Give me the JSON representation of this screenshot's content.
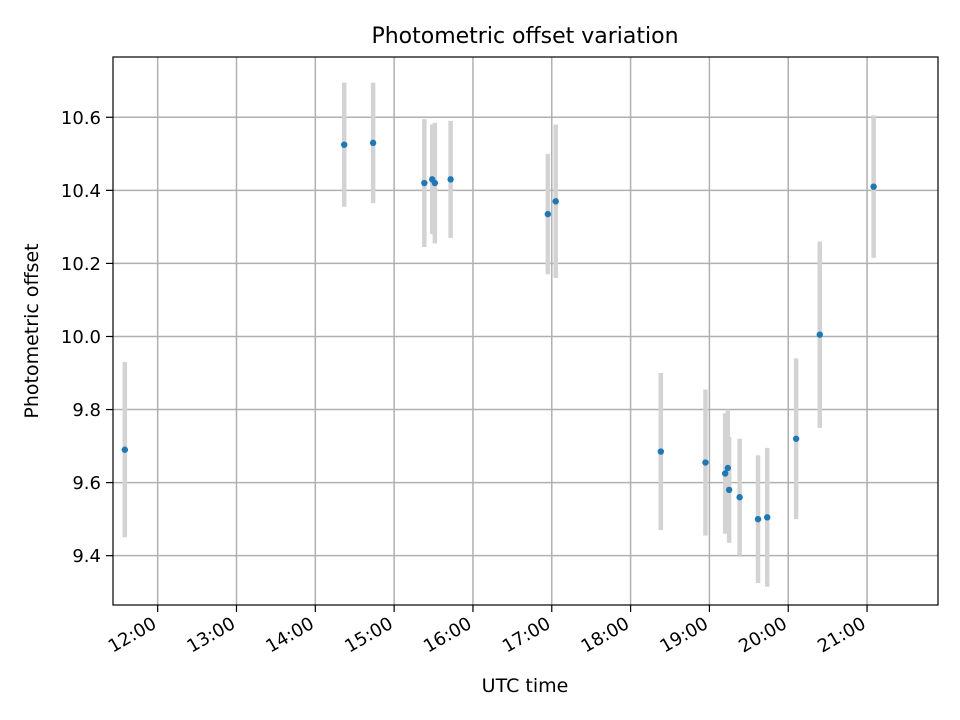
{
  "chart_data": {
    "type": "scatter",
    "title": "Photometric offset variation",
    "xlabel": "UTC time",
    "ylabel": "Photometric offset",
    "x_tick_labels": [
      "12:00",
      "13:00",
      "14:00",
      "15:00",
      "16:00",
      "17:00",
      "18:00",
      "19:00",
      "20:00",
      "21:00"
    ],
    "y_tick_labels": [
      "9.4",
      "9.6",
      "9.8",
      "10.0",
      "10.2",
      "10.4",
      "10.6"
    ],
    "y_ticks": [
      9.4,
      9.6,
      9.8,
      10.0,
      10.2,
      10.4,
      10.6
    ],
    "x_tick_times": [
      "12:00",
      "13:00",
      "14:00",
      "15:00",
      "16:00",
      "17:00",
      "18:00",
      "19:00",
      "20:00",
      "21:00"
    ],
    "xlim": [
      "11:26",
      "21:54"
    ],
    "ylim": [
      9.265,
      10.765
    ],
    "grid": true,
    "marker_color": "#1f77b4",
    "errorbar_color": "#d3d3d3",
    "points": [
      {
        "x": "11:35",
        "y": 9.69,
        "err": 0.24
      },
      {
        "x": "14:22",
        "y": 10.525,
        "err": 0.17
      },
      {
        "x": "14:44",
        "y": 10.53,
        "err": 0.165
      },
      {
        "x": "15:23",
        "y": 10.42,
        "err": 0.175
      },
      {
        "x": "15:29",
        "y": 10.43,
        "err": 0.15
      },
      {
        "x": "15:31",
        "y": 10.42,
        "err": 0.165
      },
      {
        "x": "15:43",
        "y": 10.43,
        "err": 0.16
      },
      {
        "x": "16:57",
        "y": 10.335,
        "err": 0.165
      },
      {
        "x": "17:03",
        "y": 10.37,
        "err": 0.21
      },
      {
        "x": "18:23",
        "y": 9.685,
        "err": 0.215
      },
      {
        "x": "18:57",
        "y": 9.655,
        "err": 0.2
      },
      {
        "x": "19:12",
        "y": 9.625,
        "err": 0.165
      },
      {
        "x": "19:14",
        "y": 9.64,
        "err": 0.16
      },
      {
        "x": "19:15",
        "y": 9.58,
        "err": 0.145
      },
      {
        "x": "19:23",
        "y": 9.56,
        "err": 0.16
      },
      {
        "x": "19:37",
        "y": 9.5,
        "err": 0.175
      },
      {
        "x": "19:44",
        "y": 9.505,
        "err": 0.19
      },
      {
        "x": "20:06",
        "y": 9.72,
        "err": 0.22
      },
      {
        "x": "20:24",
        "y": 10.005,
        "err": 0.255
      },
      {
        "x": "21:05",
        "y": 10.41,
        "err": 0.195
      }
    ]
  }
}
